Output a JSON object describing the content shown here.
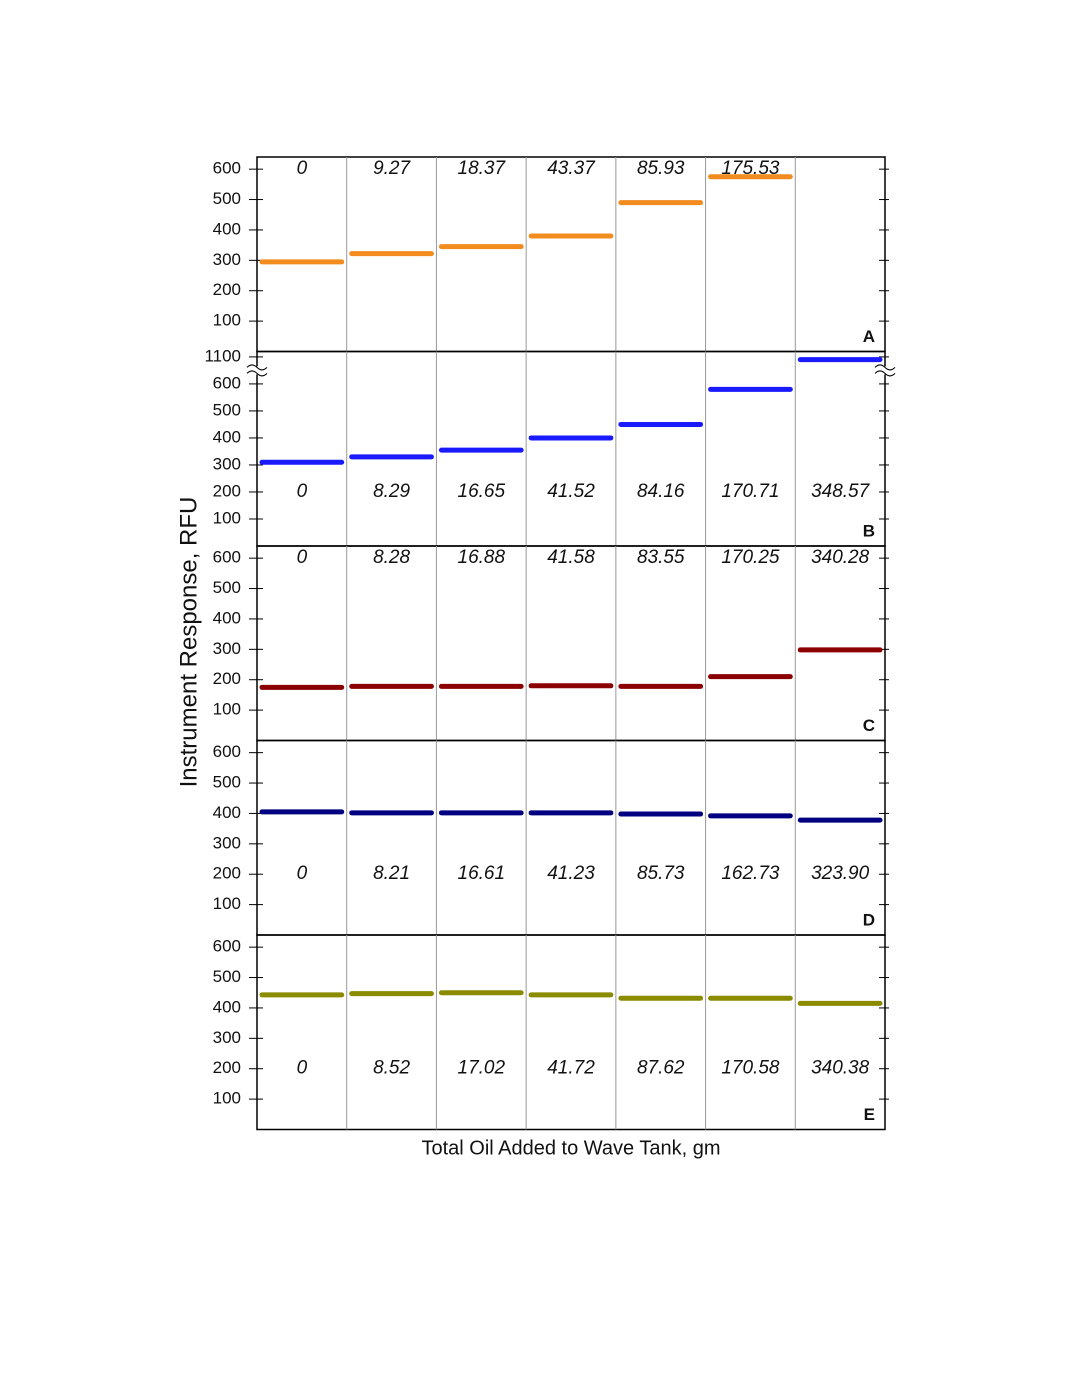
{
  "chart_data": [
    {
      "type": "line",
      "panel_label": "A",
      "color": "#f28c1e",
      "categories": [
        "0",
        "9.27",
        "18.37",
        "43.37",
        "85.93",
        "175.53",
        null
      ],
      "values": [
        295,
        322,
        345,
        380,
        490,
        575,
        null
      ],
      "ylim": [
        0,
        640
      ],
      "yticks": [
        100,
        200,
        300,
        400,
        500,
        600
      ]
    },
    {
      "type": "line",
      "panel_label": "B",
      "color": "#1a1aff",
      "categories": [
        "0",
        "8.29",
        "16.65",
        "41.52",
        "84.16",
        "170.71",
        "348.57"
      ],
      "values": [
        310,
        330,
        355,
        400,
        450,
        580,
        1090
      ],
      "ylim": [
        0,
        1120
      ],
      "axis_break": [
        650,
        1050
      ],
      "yticks": [
        100,
        200,
        300,
        400,
        500,
        600,
        1100
      ]
    },
    {
      "type": "line",
      "panel_label": "C",
      "color": "#8b0000",
      "categories": [
        "0",
        "8.28",
        "16.88",
        "41.58",
        "83.55",
        "170.25",
        "340.28"
      ],
      "values": [
        175,
        178,
        178,
        180,
        178,
        210,
        298
      ],
      "ylim": [
        0,
        640
      ],
      "yticks": [
        100,
        200,
        300,
        400,
        500,
        600
      ]
    },
    {
      "type": "line",
      "panel_label": "D",
      "color": "#000080",
      "categories": [
        "0",
        "8.21",
        "16.61",
        "41.23",
        "85.73",
        "162.73",
        "323.90"
      ],
      "values": [
        405,
        402,
        402,
        402,
        398,
        392,
        378
      ],
      "ylim": [
        0,
        640
      ],
      "yticks": [
        100,
        200,
        300,
        400,
        500,
        600
      ]
    },
    {
      "type": "line",
      "panel_label": "E",
      "color": "#8b8b00",
      "categories": [
        "0",
        "8.52",
        "17.02",
        "41.72",
        "87.62",
        "170.58",
        "340.38"
      ],
      "values": [
        443,
        447,
        450,
        443,
        432,
        432,
        415
      ],
      "ylim": [
        0,
        640
      ],
      "yticks": [
        100,
        200,
        300,
        400,
        500,
        600
      ]
    }
  ],
  "x_label": "Total Oil Added to Wave Tank, gm",
  "y_label": "Instrument Response,  RFU"
}
